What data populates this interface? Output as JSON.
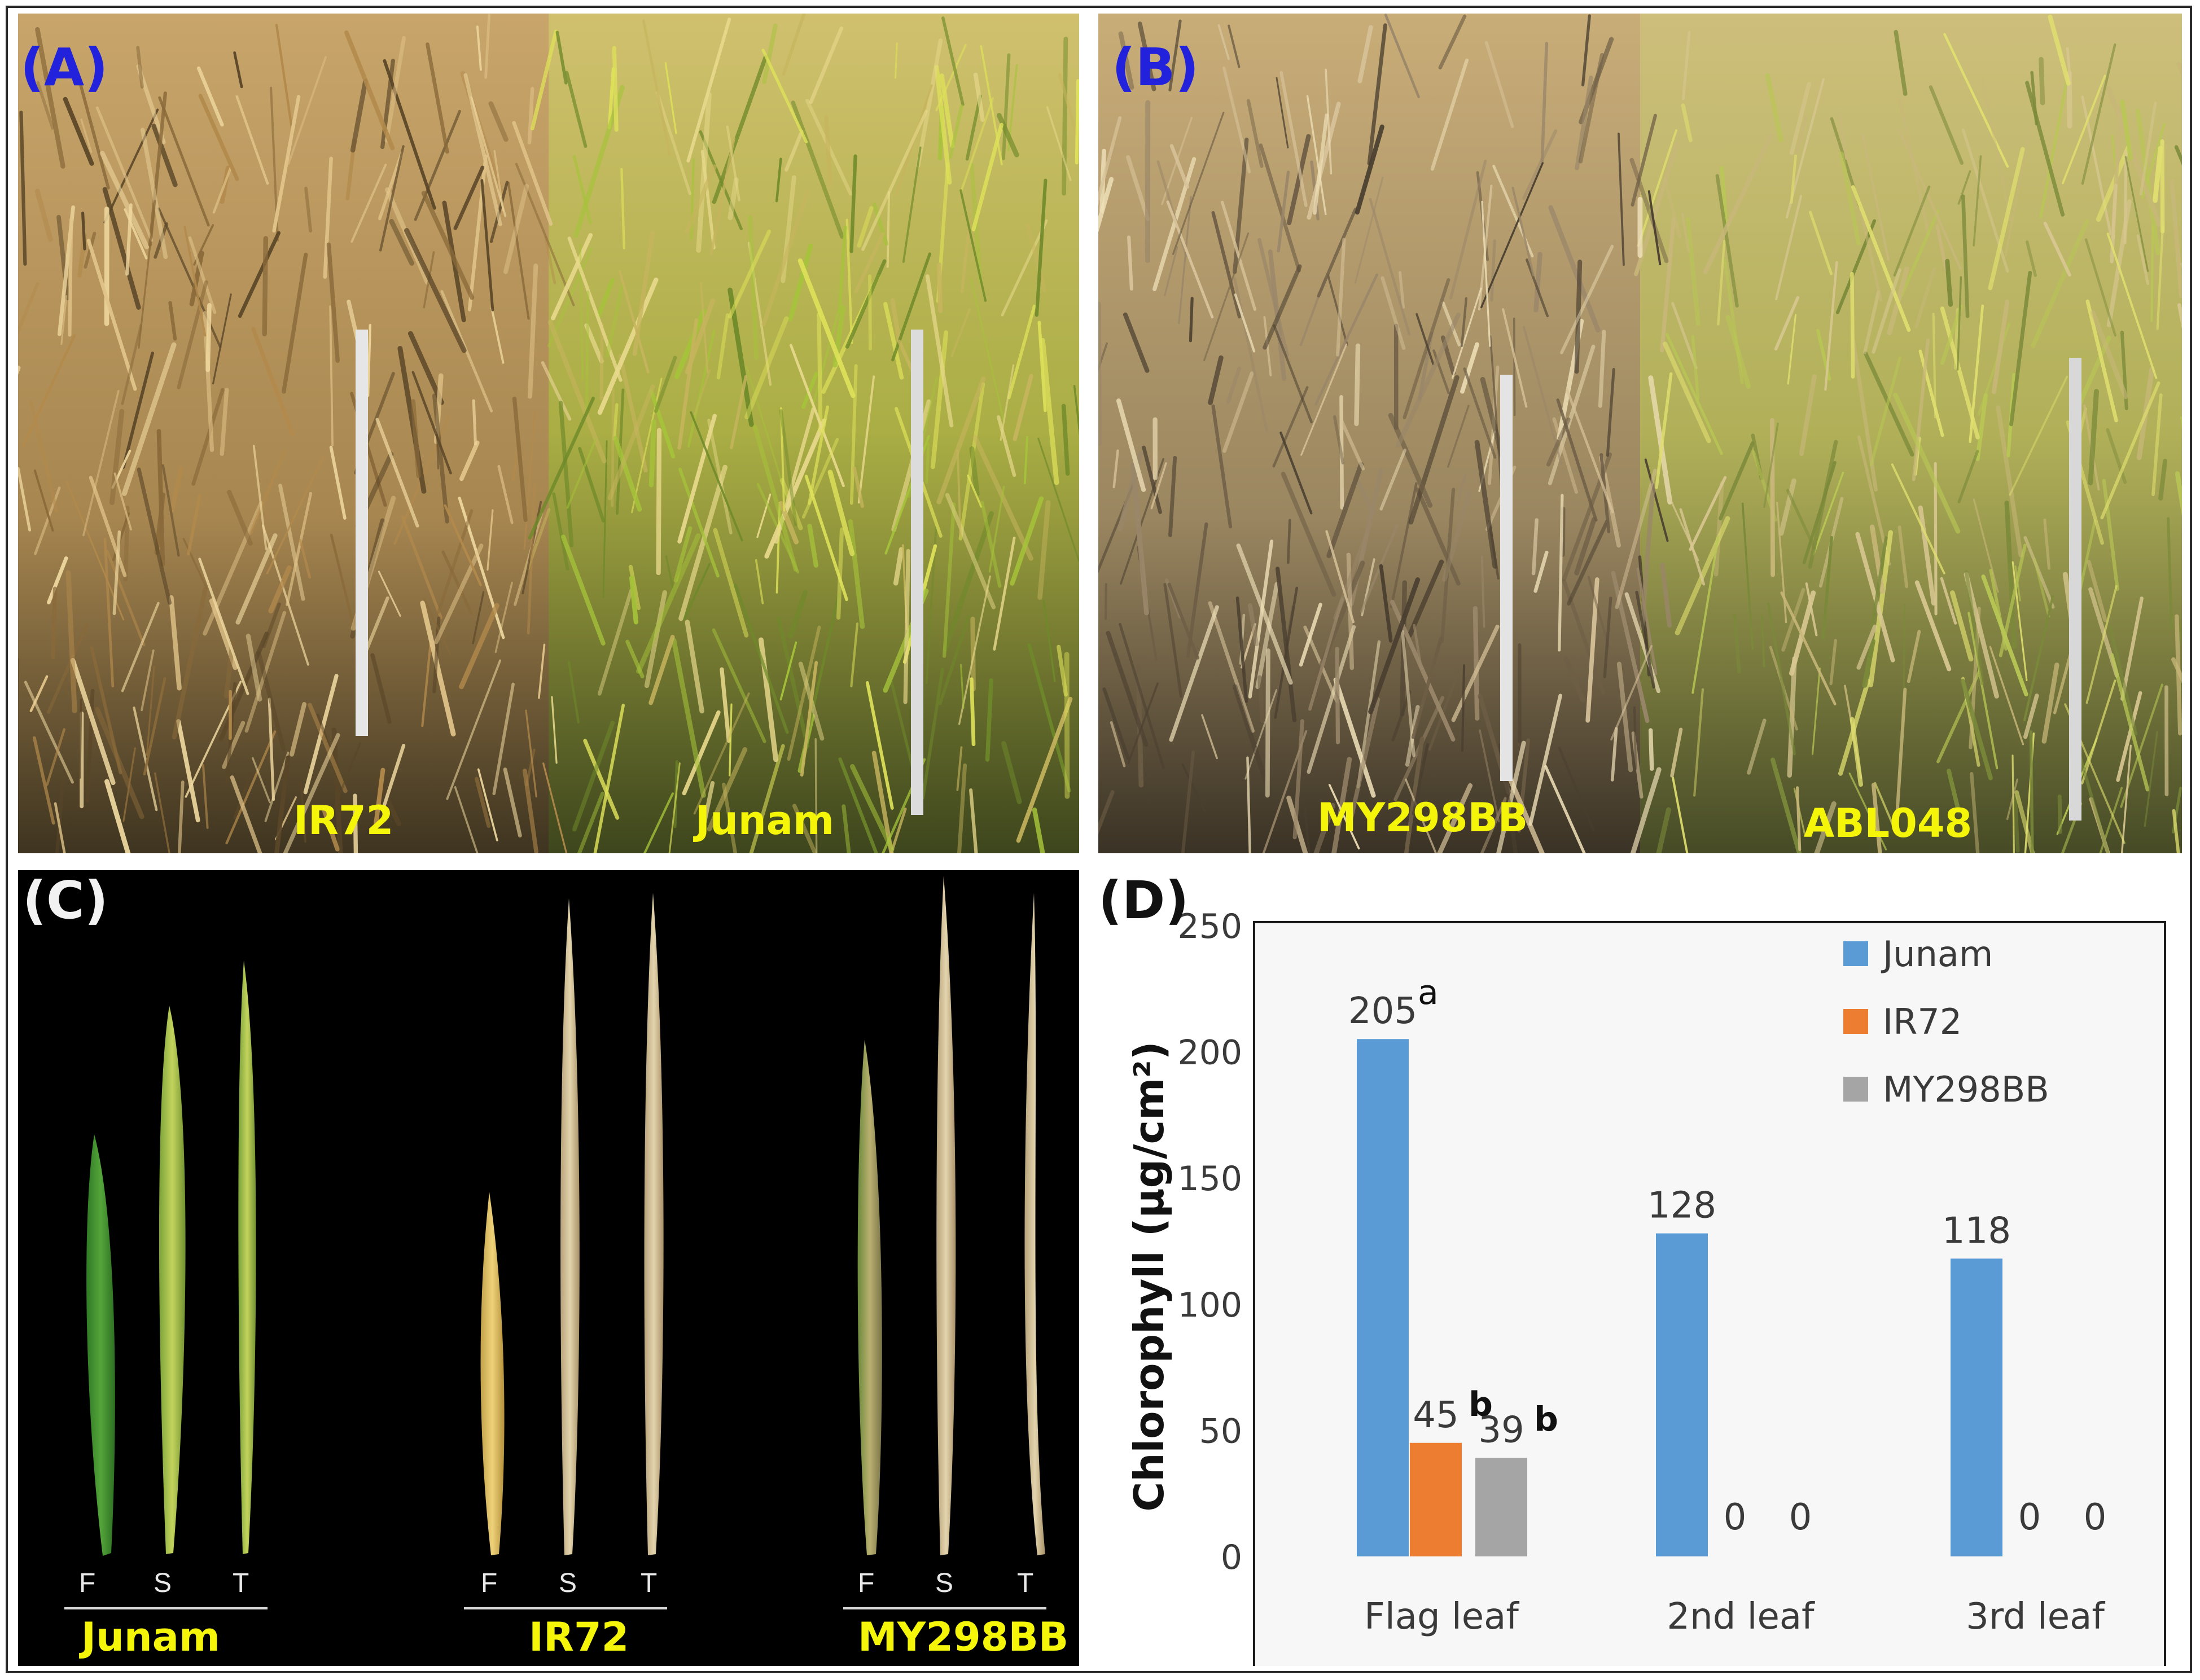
{
  "panels": {
    "a": {
      "letter": "(A)",
      "labels": [
        "IR72",
        "Junam"
      ]
    },
    "b": {
      "letter": "(B)",
      "labels": [
        "MY298BB",
        "ABL048"
      ]
    },
    "c": {
      "letter": "(C)",
      "groups": [
        "Junam",
        "IR72",
        "MY298BB"
      ],
      "leaf_ticks": [
        "F",
        "S",
        "T"
      ]
    },
    "d": {
      "letter": "(D)"
    }
  },
  "colors": {
    "Junam": "#5b9bd5",
    "IR72": "#ed7d31",
    "MY298BB": "#a5a5a5",
    "label_yellow": "#f5f50a",
    "letter_blue": "#2222dd"
  },
  "chart_data": {
    "type": "bar",
    "title": "",
    "xlabel": "",
    "ylabel": "Chlorophyll (µg/cm²)",
    "categories": [
      "Flag leaf",
      "2nd leaf",
      "3rd leaf"
    ],
    "ylim": [
      0,
      250
    ],
    "yticks": [
      0,
      50,
      100,
      150,
      200,
      250
    ],
    "grid": false,
    "legend_position": "top-right",
    "series": [
      {
        "name": "Junam",
        "values": [
          205,
          128,
          118
        ],
        "labels": [
          "205",
          "128",
          "118"
        ],
        "sig": [
          "a",
          "",
          ""
        ]
      },
      {
        "name": "IR72",
        "values": [
          45,
          0,
          0
        ],
        "labels": [
          "45",
          "0",
          "0"
        ],
        "sig": [
          "b",
          "",
          ""
        ]
      },
      {
        "name": "MY298BB",
        "values": [
          39,
          0,
          0
        ],
        "labels": [
          "39",
          "0",
          "0"
        ],
        "sig": [
          "b",
          "",
          ""
        ]
      }
    ]
  }
}
